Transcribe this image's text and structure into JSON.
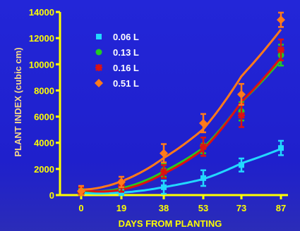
{
  "chart_data": {
    "type": "line",
    "title": "",
    "xlabel": "DAYS FROM PLANTING",
    "ylabel": "PLANT INDEX (cubic cm)",
    "x": [
      0,
      19,
      38,
      53,
      73,
      87
    ],
    "x_tick_labels": [
      "0",
      "19",
      "38",
      "53",
      "73",
      "87"
    ],
    "y_ticks": [
      0,
      2000,
      4000,
      6000,
      8000,
      10000,
      12000,
      14000
    ],
    "y_tick_labels": [
      "0",
      "2000",
      "4000",
      "6000",
      "8000",
      "10000",
      "12000",
      "14000"
    ],
    "ylim": [
      0,
      14000
    ],
    "legend_position": "top-left",
    "grid": false,
    "series": [
      {
        "name": "0.06 L",
        "marker": "square",
        "color": "#22d8ff",
        "values": [
          150,
          200,
          600,
          1300,
          2300,
          3600
        ],
        "errors": [
          350,
          300,
          500,
          600,
          500,
          550
        ]
      },
      {
        "name": "0.13 L",
        "marker": "circle",
        "color": "#22cc22",
        "values": [
          200,
          700,
          1900,
          3800,
          6400,
          10700
        ],
        "errors": [
          350,
          400,
          500,
          600,
          700,
          800
        ]
      },
      {
        "name": "0.16 L",
        "marker": "asterisk",
        "color": "#dd1111",
        "values": [
          200,
          700,
          1800,
          3700,
          6100,
          11100
        ],
        "errors": [
          400,
          450,
          500,
          700,
          900,
          800
        ]
      },
      {
        "name": "0.51 L",
        "marker": "diamond",
        "color": "#ff7a1a",
        "values": [
          300,
          1000,
          3200,
          5500,
          7700,
          13400
        ],
        "errors": [
          400,
          400,
          700,
          700,
          800,
          550
        ]
      }
    ]
  }
}
